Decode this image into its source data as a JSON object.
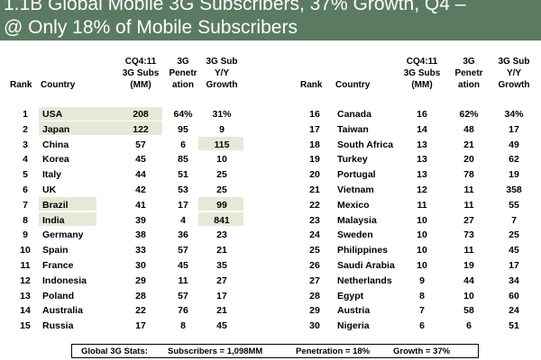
{
  "title": {
    "line1": "1.1B Global Mobile 3G Subscribers, 37% Growth, Q4 –",
    "line2": "@ Only 18% of Mobile Subscribers"
  },
  "headers": {
    "rank": "Rank",
    "country": "Country",
    "subs": [
      "CQ4:11",
      "3G Subs",
      "(MM)"
    ],
    "penetration": [
      "3G",
      "Penetr",
      "ation"
    ],
    "growth": [
      "3G Sub",
      "Y/Y",
      "Growth"
    ]
  },
  "left_rows": [
    {
      "rank": "1",
      "country": "USA",
      "subs": "208",
      "pen": "64%",
      "growth": "31%"
    },
    {
      "rank": "2",
      "country": "Japan",
      "subs": "122",
      "pen": "95",
      "growth": "9"
    },
    {
      "rank": "3",
      "country": "China",
      "subs": "57",
      "pen": "6",
      "growth": "115"
    },
    {
      "rank": "4",
      "country": "Korea",
      "subs": "45",
      "pen": "85",
      "growth": "10"
    },
    {
      "rank": "5",
      "country": "Italy",
      "subs": "44",
      "pen": "51",
      "growth": "25"
    },
    {
      "rank": "6",
      "country": "UK",
      "subs": "42",
      "pen": "53",
      "growth": "25"
    },
    {
      "rank": "7",
      "country": "Brazil",
      "subs": "41",
      "pen": "17",
      "growth": "99"
    },
    {
      "rank": "8",
      "country": "India",
      "subs": "39",
      "pen": "4",
      "growth": "841"
    },
    {
      "rank": "9",
      "country": "Germany",
      "subs": "38",
      "pen": "36",
      "growth": "23"
    },
    {
      "rank": "10",
      "country": "Spain",
      "subs": "33",
      "pen": "57",
      "growth": "21"
    },
    {
      "rank": "11",
      "country": "France",
      "subs": "30",
      "pen": "45",
      "growth": "35"
    },
    {
      "rank": "12",
      "country": "Indonesia",
      "subs": "29",
      "pen": "11",
      "growth": "27"
    },
    {
      "rank": "13",
      "country": "Poland",
      "subs": "28",
      "pen": "57",
      "growth": "17"
    },
    {
      "rank": "14",
      "country": "Australia",
      "subs": "22",
      "pen": "76",
      "growth": "21"
    },
    {
      "rank": "15",
      "country": "Russia",
      "subs": "17",
      "pen": "8",
      "growth": "45"
    }
  ],
  "right_rows": [
    {
      "rank": "16",
      "country": "Canada",
      "subs": "16",
      "pen": "62%",
      "growth": "34%"
    },
    {
      "rank": "17",
      "country": "Taiwan",
      "subs": "14",
      "pen": "48",
      "growth": "17"
    },
    {
      "rank": "18",
      "country": "South Africa",
      "subs": "13",
      "pen": "21",
      "growth": "49"
    },
    {
      "rank": "19",
      "country": "Turkey",
      "subs": "13",
      "pen": "20",
      "growth": "62"
    },
    {
      "rank": "20",
      "country": "Portugal",
      "subs": "13",
      "pen": "78",
      "growth": "19"
    },
    {
      "rank": "21",
      "country": "Vietnam",
      "subs": "12",
      "pen": "11",
      "growth": "358"
    },
    {
      "rank": "22",
      "country": "Mexico",
      "subs": "11",
      "pen": "11",
      "growth": "55"
    },
    {
      "rank": "23",
      "country": "Malaysia",
      "subs": "10",
      "pen": "27",
      "growth": "7"
    },
    {
      "rank": "24",
      "country": "Sweden",
      "subs": "10",
      "pen": "73",
      "growth": "25"
    },
    {
      "rank": "25",
      "country": "Philippines",
      "subs": "10",
      "pen": "11",
      "growth": "45"
    },
    {
      "rank": "26",
      "country": "Saudi Arabia",
      "subs": "10",
      "pen": "19",
      "growth": "17"
    },
    {
      "rank": "27",
      "country": "Netherlands",
      "subs": "9",
      "pen": "44",
      "growth": "34"
    },
    {
      "rank": "28",
      "country": "Egypt",
      "subs": "8",
      "pen": "10",
      "growth": "60"
    },
    {
      "rank": "29",
      "country": "Austria",
      "subs": "7",
      "pen": "58",
      "growth": "24"
    },
    {
      "rank": "30",
      "country": "Nigeria",
      "subs": "6",
      "pen": "6",
      "growth": "51"
    }
  ],
  "highlight_color": "#e4ead7",
  "title_bar_color": "#5b7a62",
  "footer": {
    "label": "Global 3G Stats:",
    "subscribers": "Subscribers = 1,098MM",
    "penetration": "Penetration = 18%",
    "growth": "Growth = 37%"
  }
}
